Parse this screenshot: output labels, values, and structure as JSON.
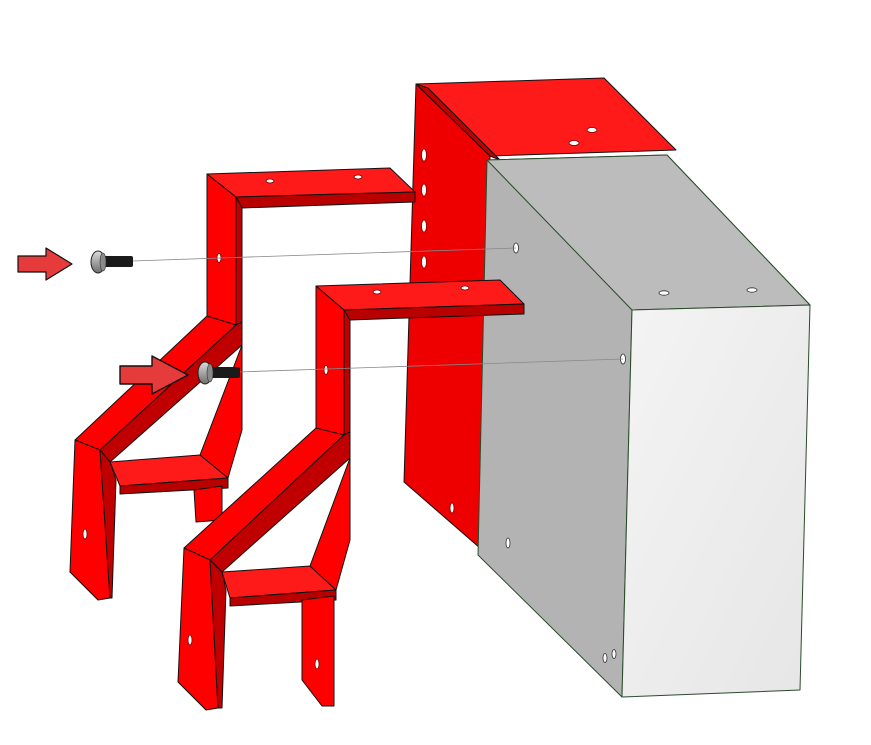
{
  "diagram": {
    "kind": "exploded assembly view",
    "parts": [
      {
        "id": "rear-red-enclosure",
        "color": "#ff0000"
      },
      {
        "id": "grey-box",
        "color": "#b3b3b3"
      },
      {
        "id": "upper-bracket",
        "color": "#ff0000"
      },
      {
        "id": "lower-bracket",
        "color": "#ff0000"
      },
      {
        "id": "screw-upper",
        "color": "#1a1a1a"
      },
      {
        "id": "screw-lower",
        "color": "#1a1a1a"
      }
    ],
    "arrows": [
      {
        "id": "arrow-upper",
        "color": "#e63b3b"
      },
      {
        "id": "arrow-lower",
        "color": "#e63b3b"
      }
    ],
    "colors": {
      "red": "#ff0000",
      "red_dark": "#c00000",
      "grey_side": "#b3b3b3",
      "grey_front": "#ececec",
      "outline": "#111111"
    }
  }
}
